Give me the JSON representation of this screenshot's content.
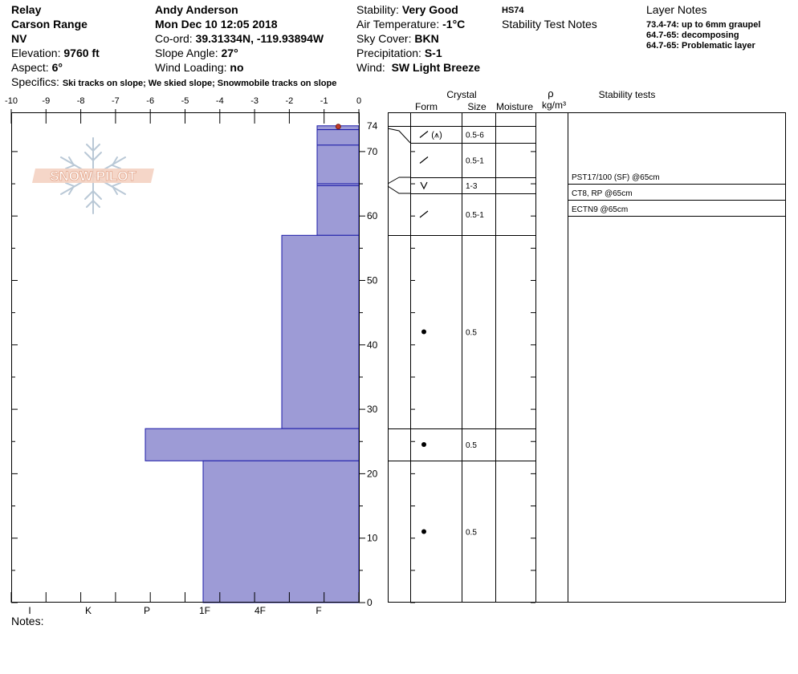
{
  "header": {
    "site": "Relay",
    "range": "Carson Range",
    "state": "NV",
    "elevation_label": "Elevation:",
    "elevation": "9760 ft",
    "aspect_label": "Aspect:",
    "aspect": "6°",
    "specifics_label": "Specifics:",
    "specifics": "Ski tracks on slope; We skied slope; Snowmobile tracks on slope",
    "observer": "Andy Anderson",
    "datetime": "Mon Dec 10 12:05 2018",
    "coord_label": "Co-ord:",
    "coord": "39.31334N, -119.93894W",
    "slope_label": "Slope Angle:",
    "slope": "27°",
    "wind_loading_label": "Wind Loading:",
    "wind_loading": "no",
    "stability_label": "Stability:",
    "stability": "Very Good",
    "air_temp_label": "Air Temperature:",
    "air_temp": "-1°C",
    "sky_label": "Sky Cover:",
    "sky": "BKN",
    "precip_label": "Precipitation:",
    "precip": "S-1",
    "wind_label": "Wind:",
    "wind": "SW Light Breeze",
    "hs": "HS74",
    "stability_notes": "Stability Test Notes",
    "layer_notes_title": "Layer Notes",
    "layer_notes": [
      "73.4-74: up to 6mm graupel",
      "64.7-65: decomposing",
      "64.7-65: Problematic layer"
    ],
    "notes_label": "Notes:"
  },
  "watermark": "SNOW PILOT",
  "columns": {
    "crystal": "Crystal",
    "form": "Form",
    "size": "Size",
    "moisture": "Moisture",
    "density_symbol": "ρ",
    "density_unit": "kg/m³",
    "stability_tests": "Stability tests"
  },
  "chart_data": {
    "type": "bar",
    "temperature_axis": {
      "ticks": [
        "-10",
        "-9",
        "-8",
        "-7",
        "-6",
        "-5",
        "-4",
        "-3",
        "-2",
        "-1",
        "0"
      ],
      "range": [
        -10,
        0
      ]
    },
    "hardness_axis": {
      "ticks": [
        "I",
        "K",
        "P",
        "1F",
        "4F",
        "F"
      ]
    },
    "depth_axis": {
      "range": [
        0,
        74
      ],
      "ticks": [
        "0",
        "10",
        "20",
        "30",
        "40",
        "50",
        "60",
        "70",
        "74"
      ]
    },
    "snow_temperature": [
      {
        "depth": 74,
        "temp": -0.5
      }
    ],
    "layers": [
      {
        "top": 74,
        "bottom": 73.4,
        "hardness": "F",
        "size": ""
      },
      {
        "top": 73.4,
        "bottom": 71,
        "hardness": "F",
        "form": "FC+PP",
        "size": "0.5-6"
      },
      {
        "top": 71,
        "bottom": 65,
        "hardness": "F",
        "form": "FC",
        "size": "0.5-1"
      },
      {
        "top": 65,
        "bottom": 64.7,
        "hardness": "F",
        "form": "SH",
        "size": "1-3"
      },
      {
        "top": 64.7,
        "bottom": 57,
        "hardness": "F",
        "form": "FC",
        "size": "0.5-1"
      },
      {
        "top": 57,
        "bottom": 27,
        "hardness": "4F+",
        "form": "RG",
        "size": "0.5"
      },
      {
        "top": 27,
        "bottom": 22,
        "hardness": "P",
        "form": "RG",
        "size": "0.5"
      },
      {
        "top": 22,
        "bottom": 0,
        "hardness": "1F",
        "form": "RG",
        "size": "0.5"
      }
    ],
    "stability_tests": [
      {
        "label": "PST17/100 (SF) @65cm"
      },
      {
        "label": "CT8, RP @65cm"
      },
      {
        "label": "ECTN9 @65cm"
      }
    ]
  }
}
